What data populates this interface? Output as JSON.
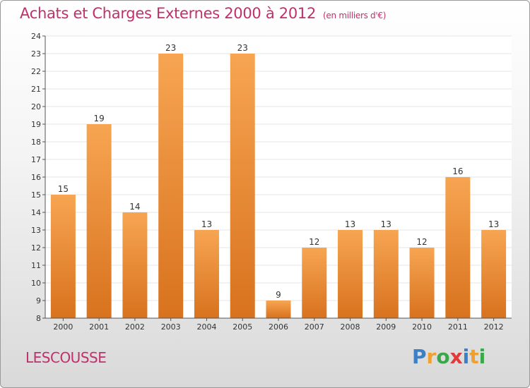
{
  "header": {
    "title": "Achats et Charges Externes 2000 à 2012",
    "unit": "(en milliers d'€)"
  },
  "commune": "LESCOUSSE",
  "logo": {
    "letters": [
      "P",
      "r",
      "o",
      "x",
      "i",
      "t",
      "i"
    ],
    "colors": [
      "#3a7fc8",
      "#f0a030",
      "#3aa84a",
      "#e03a3a",
      "#3a7fc8",
      "#f0a030",
      "#3aa84a"
    ]
  },
  "colors": {
    "bar_top": "#f7a552",
    "bar_bottom": "#d8721e",
    "text_accent": "#c0306a"
  },
  "chart_data": {
    "type": "bar",
    "categories": [
      "2000",
      "2001",
      "2002",
      "2003",
      "2004",
      "2005",
      "2006",
      "2007",
      "2008",
      "2009",
      "2010",
      "2011",
      "2012"
    ],
    "values": [
      15,
      19,
      14,
      23,
      13,
      23,
      9,
      12,
      13,
      13,
      12,
      16,
      13
    ],
    "data_labels": [
      "15",
      "19",
      "14",
      "23",
      "13",
      "23",
      "9",
      "12",
      "13",
      "13",
      "12",
      "16",
      "13"
    ],
    "yticks": [
      "8",
      "9",
      "10",
      "11",
      "12",
      "13",
      "14",
      "15",
      "16",
      "17",
      "18",
      "19",
      "20",
      "21",
      "22",
      "23",
      "24"
    ],
    "ylim": [
      8,
      24
    ],
    "grid": true
  }
}
